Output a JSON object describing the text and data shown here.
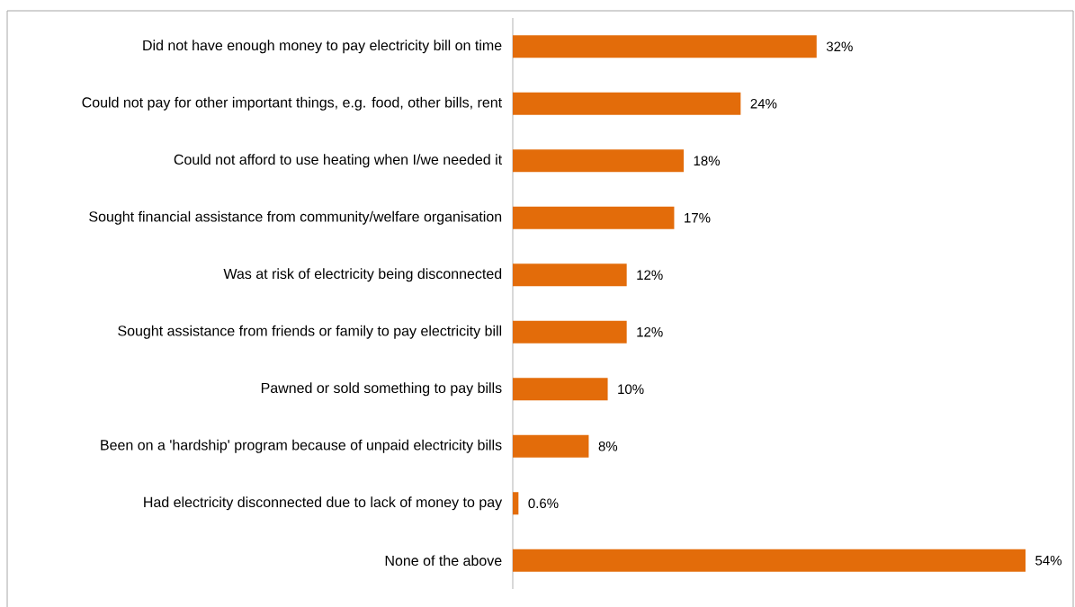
{
  "chart_data": {
    "type": "bar",
    "orientation": "horizontal",
    "color": "#e36c0a",
    "categories": [
      "Did not have enough money to pay electricity bill on time",
      "Could not pay for other important things, e.g. food, other bills, rent",
      "Could not afford to use heating when I/we needed it",
      "Sought financial assistance from community/welfare organisation",
      "Was at risk of electricity being disconnected",
      "Sought assistance from friends or family to pay electricity bill",
      "Pawned or sold something to pay bills",
      "Been on a 'hardship' program because of unpaid electricity bills",
      "Had electricity disconnected due to lack of money to pay",
      "None of the above"
    ],
    "values": [
      32,
      24,
      18,
      17,
      12,
      12,
      10,
      8,
      0.6,
      54
    ],
    "value_labels": [
      "32%",
      "24%",
      "18%",
      "17%",
      "12%",
      "12%",
      "10%",
      "8%",
      "0.6%",
      "54%"
    ]
  }
}
